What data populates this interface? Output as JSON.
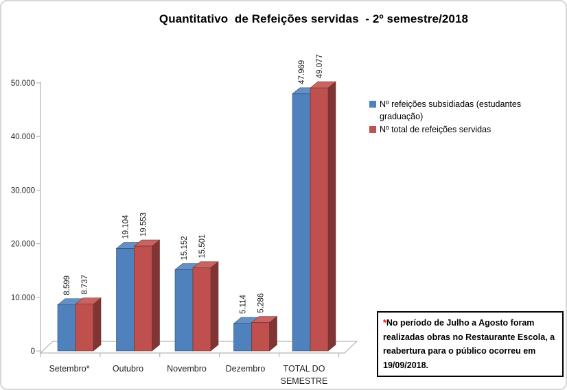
{
  "title": "Quantitativo  de Refeições servidas  - 2º semestre/2018",
  "chart_data": {
    "type": "bar",
    "variant": "3d-clustered-column",
    "title": "Quantitativo de Refeições servidas - 2º semestre/2018",
    "categories": [
      "Setembro*",
      "Outubro",
      "Novembro",
      "Dezembro",
      "TOTAL DO SEMESTRE"
    ],
    "series": [
      {
        "name": "Nº refeições subsidiadas (estudantes graduação)",
        "key": "subsidiadas",
        "color": "#4F81BD",
        "values": [
          8599,
          19104,
          15152,
          5114,
          47969
        ]
      },
      {
        "name": "Nº total de refeições servidas",
        "key": "total",
        "color": "#C0504D",
        "values": [
          8737,
          19553,
          15501,
          5286,
          49077
        ]
      }
    ],
    "value_labels": [
      [
        "8.599",
        "19.104",
        "15.152",
        "5.114",
        "47.969"
      ],
      [
        "8.737",
        "19.553",
        "15.501",
        "5.286",
        "49.077"
      ]
    ],
    "value_label_rotation": -90,
    "y_axis": {
      "min": 0,
      "max": 50000,
      "step": 10000,
      "tick_labels": [
        "0",
        "10.000",
        "20.000",
        "30.000",
        "40.000",
        "50.000"
      ]
    },
    "xlabel": "",
    "ylabel": "",
    "gridlines": false,
    "legend_position": "right",
    "axis_color": "#A6A6A6"
  },
  "note": {
    "marker": "*",
    "marker_color": "#FF0000",
    "text": "No período de Julho a Agosto foram realizadas obras no Restaurante Escola, a reabertura para o público ocorreu em 19/09/2018."
  }
}
